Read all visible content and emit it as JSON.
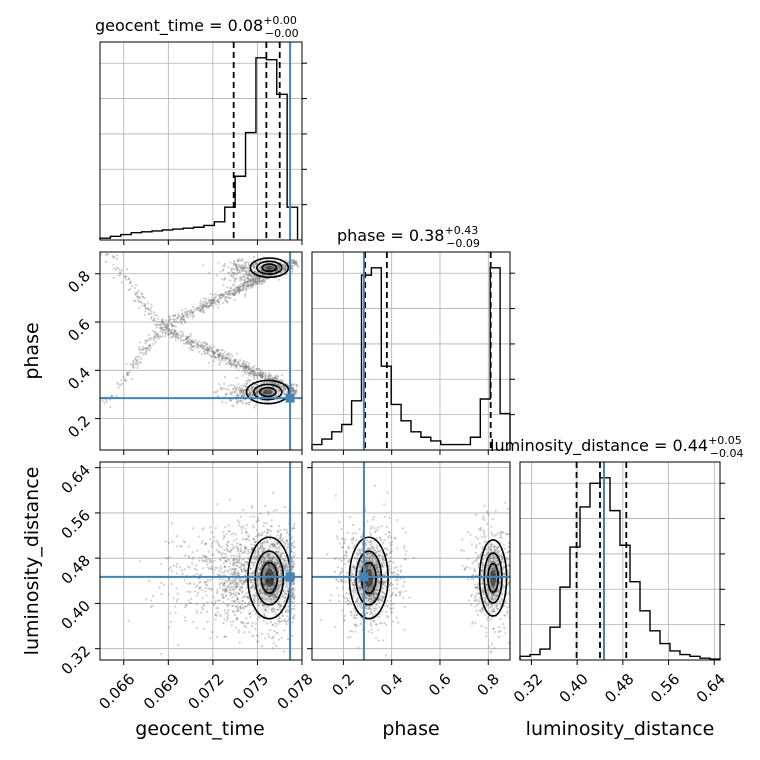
{
  "chart_data": {
    "type": "corner",
    "colors": {
      "truth": "#4682b4",
      "hist": "#000000",
      "grid": "#b0b0b0",
      "quantile": "#000000"
    },
    "grid": true,
    "parameters": [
      {
        "name": "geocent_time",
        "median": "0.08",
        "err_plus": "+0.00",
        "err_minus": "−0.00",
        "truth": 0.0772,
        "quantiles": [
          0.0734,
          0.0756,
          0.0765
        ],
        "range": [
          0.0644,
          0.078
        ],
        "ticks": [
          "0.066",
          "0.069",
          "0.072",
          "0.075",
          "0.078"
        ],
        "tick_values": [
          0.066,
          0.069,
          0.072,
          0.075,
          0.078
        ]
      },
      {
        "name": "phase",
        "median": "0.38",
        "err_plus": "+0.43",
        "err_minus": "−0.09",
        "truth": 0.285,
        "quantiles": [
          0.29,
          0.38,
          0.81
        ],
        "range": [
          0.07,
          0.89
        ],
        "ticks": [
          "0.2",
          "0.4",
          "0.6",
          "0.8"
        ],
        "tick_values": [
          0.2,
          0.4,
          0.6,
          0.8
        ]
      },
      {
        "name": "luminosity_distance",
        "median": "0.44",
        "err_plus": "+0.05",
        "err_minus": "−0.04",
        "truth": 0.447,
        "quantiles": [
          0.399,
          0.44,
          0.486
        ],
        "range": [
          0.3,
          0.65
        ],
        "ticks": [
          "0.32",
          "0.40",
          "0.48",
          "0.56",
          "0.64"
        ],
        "tick_values": [
          0.32,
          0.4,
          0.48,
          0.56,
          0.64
        ]
      }
    ],
    "histograms": {
      "geocent_time": {
        "x": [
          0.0644,
          0.0651,
          0.0658,
          0.0665,
          0.0672,
          0.0679,
          0.0686,
          0.0693,
          0.07,
          0.0707,
          0.0714,
          0.0721,
          0.0728,
          0.0735,
          0.0742,
          0.0749,
          0.0756,
          0.0763,
          0.077
        ],
        "values": [
          0.01,
          0.02,
          0.03,
          0.04,
          0.045,
          0.05,
          0.055,
          0.06,
          0.065,
          0.07,
          0.08,
          0.1,
          0.18,
          0.35,
          0.59,
          1.0,
          0.99,
          0.8,
          0.18
        ]
      },
      "phase": {
        "x": [
          0.07,
          0.111,
          0.152,
          0.193,
          0.234,
          0.275,
          0.316,
          0.357,
          0.398,
          0.439,
          0.48,
          0.521,
          0.562,
          0.603,
          0.644,
          0.685,
          0.726,
          0.767,
          0.808,
          0.849
        ],
        "values": [
          0.03,
          0.06,
          0.1,
          0.14,
          0.27,
          0.96,
          1.0,
          0.46,
          0.25,
          0.16,
          0.1,
          0.07,
          0.05,
          0.03,
          0.03,
          0.03,
          0.07,
          0.28,
          1.0,
          0.2
        ]
      },
      "luminosity_distance": {
        "x": [
          0.3,
          0.3175,
          0.335,
          0.3525,
          0.37,
          0.3875,
          0.405,
          0.4225,
          0.44,
          0.4575,
          0.475,
          0.4925,
          0.51,
          0.5275,
          0.545,
          0.5625,
          0.58,
          0.5975,
          0.615,
          0.6325
        ],
        "values": [
          0.02,
          0.03,
          0.06,
          0.18,
          0.4,
          0.62,
          0.84,
          0.97,
          1.0,
          0.82,
          0.63,
          0.43,
          0.27,
          0.16,
          0.09,
          0.05,
          0.03,
          0.02,
          0.01,
          0.005
        ]
      }
    }
  }
}
